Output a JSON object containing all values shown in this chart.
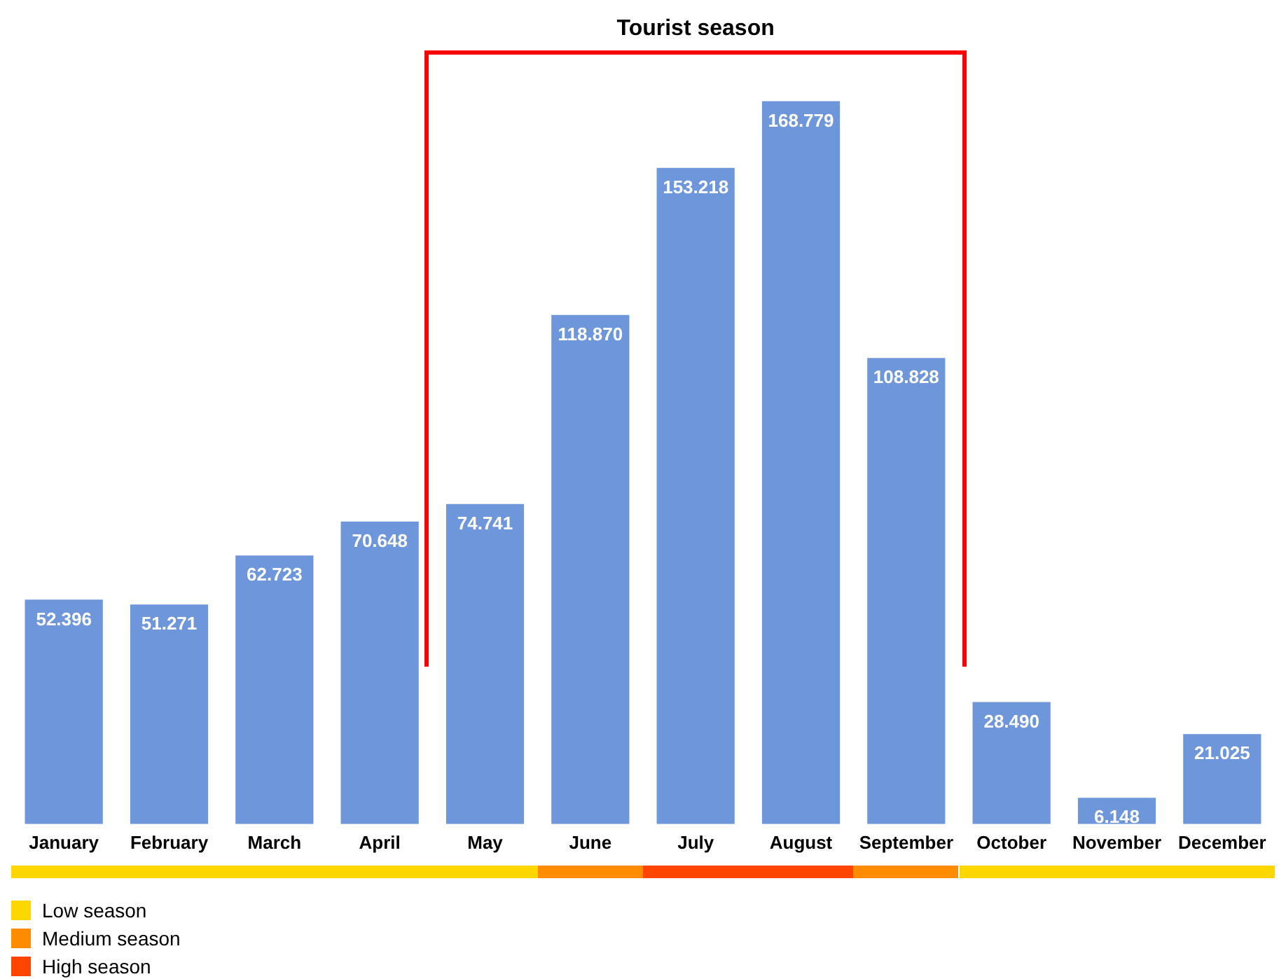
{
  "chart_data": {
    "type": "bar",
    "categories": [
      "January",
      "February",
      "March",
      "April",
      "May",
      "June",
      "July",
      "August",
      "September",
      "October",
      "November",
      "December"
    ],
    "values": [
      52.396,
      51.271,
      62.723,
      70.648,
      74.741,
      118.87,
      153.218,
      168.779,
      108.828,
      28.49,
      6.148,
      21.025
    ],
    "value_labels": [
      "52.396",
      "51.271",
      "62.723",
      "70.648",
      "74.741",
      "118.870",
      "153.218",
      "168.779",
      "108.828",
      "28.490",
      "6.148",
      "21.025"
    ],
    "color": "#6d96db",
    "tick_labels": "x",
    "annotations": [
      "Tourist season",
      "Low season",
      "Medium season",
      "High season"
    ]
  }
}
